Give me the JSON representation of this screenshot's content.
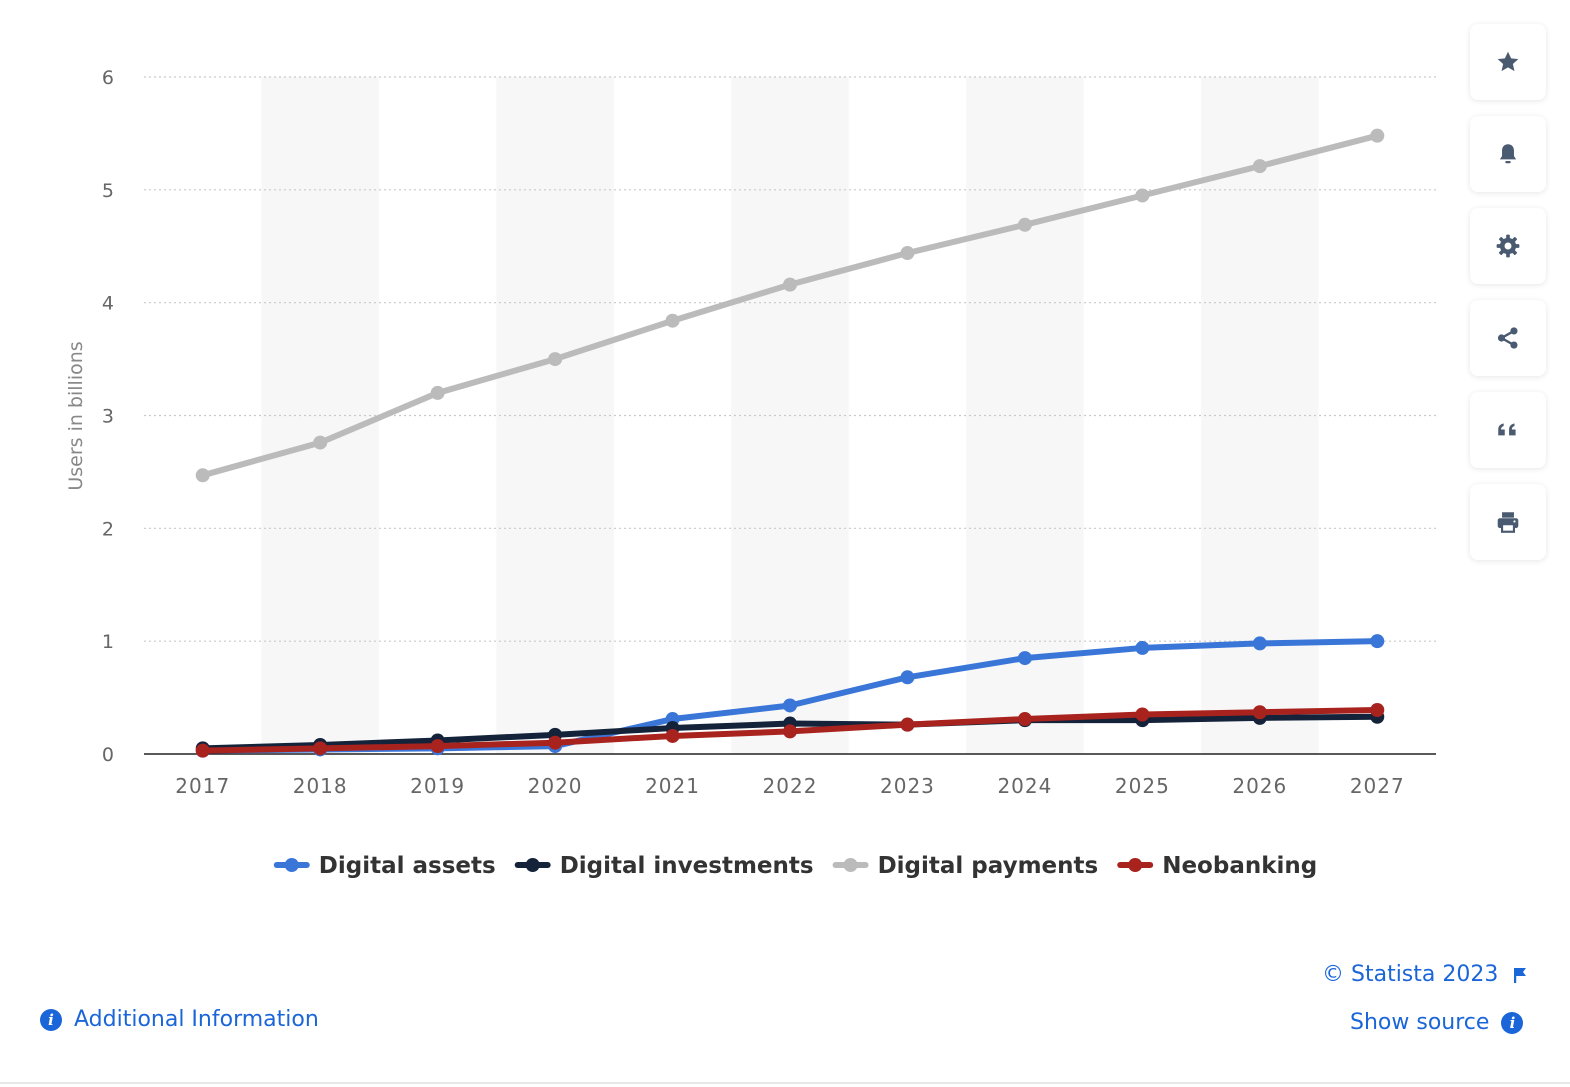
{
  "chart_data": {
    "type": "line",
    "title": "",
    "xlabel": "",
    "ylabel": "Users in billions",
    "ylim": [
      0,
      6
    ],
    "yticks": [
      0,
      1,
      2,
      3,
      4,
      5,
      6
    ],
    "categories": [
      "2017",
      "2018",
      "2019",
      "2020",
      "2021",
      "2022",
      "2023",
      "2024",
      "2025",
      "2026",
      "2027"
    ],
    "grid": "horizontal dotted",
    "legend": "bottom-center",
    "series": [
      {
        "name": "Digital assets",
        "color": "#3a76d8",
        "values": [
          0.03,
          0.04,
          0.05,
          0.07,
          0.31,
          0.43,
          0.68,
          0.85,
          0.94,
          0.98,
          1.0
        ]
      },
      {
        "name": "Digital investments",
        "color": "#14233a",
        "values": [
          0.05,
          0.08,
          0.12,
          0.17,
          0.23,
          0.27,
          0.26,
          0.3,
          0.3,
          0.32,
          0.33
        ]
      },
      {
        "name": "Digital payments",
        "color": "#bbbbbb",
        "values": [
          2.47,
          2.76,
          3.2,
          3.5,
          3.84,
          4.16,
          4.44,
          4.69,
          4.95,
          5.21,
          5.48
        ]
      },
      {
        "name": "Neobanking",
        "color": "#a8231e",
        "values": [
          0.03,
          0.05,
          0.07,
          0.1,
          0.16,
          0.2,
          0.26,
          0.31,
          0.35,
          0.37,
          0.39
        ]
      }
    ]
  },
  "sidebar": {
    "buttons": [
      {
        "name": "star-icon"
      },
      {
        "name": "bell-icon"
      },
      {
        "name": "gear-icon"
      },
      {
        "name": "share-icon"
      },
      {
        "name": "quote-icon"
      },
      {
        "name": "print-icon"
      }
    ]
  },
  "footer": {
    "copyright": "© Statista 2023",
    "show_source": "Show source",
    "additional_info": "Additional Information",
    "link_color": "#1a66d9"
  }
}
